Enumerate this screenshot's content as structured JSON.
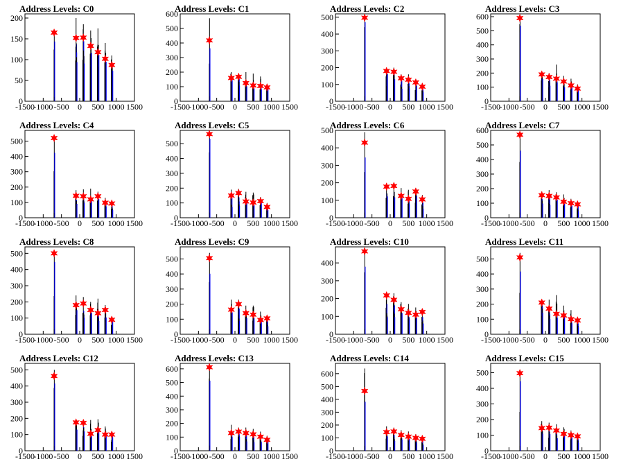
{
  "chart_data": {
    "type": "histogram-grid",
    "x_ticks": [
      -1500,
      -1000,
      -500,
      0,
      500,
      1000,
      1500
    ],
    "x_tick_labels": [
      "-1500",
      "-1000",
      "-500",
      "0",
      "500",
      "1000",
      "1500"
    ],
    "xlim": [
      -1500,
      1500
    ],
    "colors": {
      "histogram_black": "#000000",
      "histogram_blue": "#0000ff",
      "peak_marker": "#ff0000"
    },
    "panels": [
      {
        "title": "Address Levels: C0",
        "ylim": [
          0,
          210
        ],
        "y_ticks": [
          0,
          50,
          100,
          150,
          200
        ],
        "peaks": [
          [
            -700,
            165
          ],
          [
            -100,
            152
          ],
          [
            100,
            153
          ],
          [
            300,
            133
          ],
          [
            500,
            118
          ],
          [
            700,
            102
          ],
          [
            880,
            87
          ]
        ],
        "black_max": [
          [
            -700,
            170
          ],
          [
            -100,
            200
          ],
          [
            100,
            185
          ],
          [
            300,
            170
          ],
          [
            500,
            175
          ],
          [
            700,
            140
          ],
          [
            880,
            110
          ]
        ],
        "blue_ratio": 0.95
      },
      {
        "title": "Address Levels: C1",
        "ylim": [
          0,
          600
        ],
        "y_ticks": [
          0,
          100,
          200,
          300,
          400,
          500,
          600
        ],
        "peaks": [
          [
            -700,
            418
          ],
          [
            -100,
            160
          ],
          [
            100,
            168
          ],
          [
            300,
            125
          ],
          [
            500,
            108
          ],
          [
            700,
            105
          ],
          [
            880,
            95
          ]
        ],
        "black_max": [
          [
            -700,
            570
          ],
          [
            -100,
            200
          ],
          [
            100,
            190
          ],
          [
            300,
            200
          ],
          [
            500,
            190
          ],
          [
            700,
            170
          ],
          [
            880,
            120
          ]
        ],
        "blue_ratio": 0.95
      },
      {
        "title": "Address Levels: C2",
        "ylim": [
          0,
          520
        ],
        "y_ticks": [
          0,
          100,
          200,
          300,
          400,
          500
        ],
        "peaks": [
          [
            -700,
            497
          ],
          [
            -100,
            180
          ],
          [
            100,
            175
          ],
          [
            300,
            137
          ],
          [
            500,
            128
          ],
          [
            700,
            112
          ],
          [
            880,
            87
          ]
        ],
        "black_max": [
          [
            -700,
            510
          ],
          [
            -100,
            190
          ],
          [
            100,
            200
          ],
          [
            300,
            160
          ],
          [
            500,
            160
          ],
          [
            700,
            130
          ],
          [
            880,
            100
          ]
        ],
        "blue_ratio": 0.95
      },
      {
        "title": "Address Levels: C3",
        "ylim": [
          0,
          620
        ],
        "y_ticks": [
          0,
          100,
          200,
          300,
          400,
          500,
          600
        ],
        "peaks": [
          [
            -700,
            590
          ],
          [
            -100,
            190
          ],
          [
            100,
            172
          ],
          [
            300,
            160
          ],
          [
            500,
            140
          ],
          [
            700,
            112
          ],
          [
            880,
            90
          ]
        ],
        "black_max": [
          [
            -700,
            600
          ],
          [
            -100,
            200
          ],
          [
            100,
            200
          ],
          [
            300,
            260
          ],
          [
            500,
            180
          ],
          [
            700,
            160
          ],
          [
            880,
            120
          ]
        ],
        "blue_ratio": 0.95
      },
      {
        "title": "Address Levels: C4",
        "ylim": [
          0,
          570
        ],
        "y_ticks": [
          0,
          100,
          200,
          300,
          400,
          500
        ],
        "peaks": [
          [
            -700,
            520
          ],
          [
            -100,
            143
          ],
          [
            100,
            140
          ],
          [
            300,
            120
          ],
          [
            500,
            140
          ],
          [
            700,
            98
          ],
          [
            880,
            93
          ]
        ],
        "black_max": [
          [
            -700,
            530
          ],
          [
            -100,
            180
          ],
          [
            100,
            185
          ],
          [
            300,
            190
          ],
          [
            500,
            170
          ],
          [
            700,
            130
          ],
          [
            880,
            110
          ]
        ],
        "blue_ratio": 0.95
      },
      {
        "title": "Address Levels: C5",
        "ylim": [
          0,
          590
        ],
        "y_ticks": [
          0,
          100,
          200,
          300,
          400,
          500
        ],
        "peaks": [
          [
            -700,
            565
          ],
          [
            -100,
            150
          ],
          [
            100,
            167
          ],
          [
            300,
            110
          ],
          [
            500,
            103
          ],
          [
            700,
            112
          ],
          [
            880,
            73
          ]
        ],
        "black_max": [
          [
            -700,
            580
          ],
          [
            -100,
            190
          ],
          [
            100,
            195
          ],
          [
            300,
            175
          ],
          [
            500,
            170
          ],
          [
            700,
            140
          ],
          [
            880,
            100
          ]
        ],
        "blue_ratio": 0.95
      },
      {
        "title": "Address Levels: C6",
        "ylim": [
          0,
          500
        ],
        "y_ticks": [
          0,
          100,
          200,
          300,
          400,
          500
        ],
        "peaks": [
          [
            -700,
            430
          ],
          [
            -100,
            178
          ],
          [
            100,
            182
          ],
          [
            300,
            125
          ],
          [
            500,
            108
          ],
          [
            700,
            150
          ],
          [
            880,
            105
          ]
        ],
        "black_max": [
          [
            -700,
            490
          ],
          [
            -100,
            185
          ],
          [
            100,
            190
          ],
          [
            300,
            170
          ],
          [
            500,
            160
          ],
          [
            700,
            170
          ],
          [
            880,
            130
          ]
        ],
        "blue_ratio": 0.9
      },
      {
        "title": "Address Levels: C7",
        "ylim": [
          0,
          600
        ],
        "y_ticks": [
          0,
          100,
          200,
          300,
          400,
          500,
          600
        ],
        "peaks": [
          [
            -700,
            570
          ],
          [
            -100,
            155
          ],
          [
            100,
            150
          ],
          [
            300,
            140
          ],
          [
            500,
            110
          ],
          [
            700,
            100
          ],
          [
            880,
            92
          ]
        ],
        "black_max": [
          [
            -700,
            590
          ],
          [
            -100,
            180
          ],
          [
            100,
            190
          ],
          [
            300,
            175
          ],
          [
            500,
            160
          ],
          [
            700,
            130
          ],
          [
            880,
            110
          ]
        ],
        "blue_ratio": 0.95
      },
      {
        "title": "Address Levels: C8",
        "ylim": [
          0,
          540
        ],
        "y_ticks": [
          0,
          100,
          200,
          300,
          400,
          500
        ],
        "peaks": [
          [
            -700,
            500
          ],
          [
            -100,
            180
          ],
          [
            100,
            190
          ],
          [
            300,
            150
          ],
          [
            500,
            130
          ],
          [
            700,
            150
          ],
          [
            880,
            90
          ]
        ],
        "black_max": [
          [
            -700,
            510
          ],
          [
            -100,
            240
          ],
          [
            100,
            230
          ],
          [
            300,
            200
          ],
          [
            500,
            220
          ],
          [
            700,
            180
          ],
          [
            880,
            110
          ]
        ],
        "blue_ratio": 0.9
      },
      {
        "title": "Address Levels: C9",
        "ylim": [
          0,
          580
        ],
        "y_ticks": [
          0,
          100,
          200,
          300,
          400,
          500
        ],
        "peaks": [
          [
            -700,
            505
          ],
          [
            -100,
            163
          ],
          [
            100,
            200
          ],
          [
            300,
            140
          ],
          [
            500,
            130
          ],
          [
            700,
            95
          ],
          [
            880,
            105
          ]
        ],
        "black_max": [
          [
            -700,
            540
          ],
          [
            -100,
            230
          ],
          [
            100,
            230
          ],
          [
            300,
            190
          ],
          [
            500,
            190
          ],
          [
            700,
            150
          ],
          [
            880,
            120
          ]
        ],
        "blue_ratio": 0.9
      },
      {
        "title": "Address Levels: C10",
        "ylim": [
          0,
          490
        ],
        "y_ticks": [
          0,
          100,
          200,
          300,
          400
        ],
        "peaks": [
          [
            -700,
            465
          ],
          [
            -100,
            218
          ],
          [
            100,
            193
          ],
          [
            300,
            140
          ],
          [
            500,
            120
          ],
          [
            700,
            110
          ],
          [
            880,
            125
          ]
        ],
        "black_max": [
          [
            -700,
            480
          ],
          [
            -100,
            225
          ],
          [
            100,
            230
          ],
          [
            300,
            180
          ],
          [
            500,
            170
          ],
          [
            700,
            150
          ],
          [
            880,
            130
          ]
        ],
        "blue_ratio": 0.9
      },
      {
        "title": "Address Levels: C11",
        "ylim": [
          0,
          580
        ],
        "y_ticks": [
          0,
          100,
          200,
          300,
          400,
          500
        ],
        "peaks": [
          [
            -700,
            510
          ],
          [
            -100,
            210
          ],
          [
            100,
            170
          ],
          [
            300,
            135
          ],
          [
            500,
            125
          ],
          [
            700,
            100
          ],
          [
            880,
            92
          ]
        ],
        "black_max": [
          [
            -700,
            540
          ],
          [
            -100,
            220
          ],
          [
            100,
            230
          ],
          [
            300,
            260
          ],
          [
            500,
            190
          ],
          [
            700,
            160
          ],
          [
            880,
            110
          ]
        ],
        "blue_ratio": 0.95
      },
      {
        "title": "Address Levels: C12",
        "ylim": [
          0,
          540
        ],
        "y_ticks": [
          0,
          100,
          200,
          300,
          400,
          500
        ],
        "peaks": [
          [
            -700,
            462
          ],
          [
            -100,
            175
          ],
          [
            100,
            172
          ],
          [
            300,
            105
          ],
          [
            500,
            128
          ],
          [
            700,
            100
          ],
          [
            880,
            100
          ]
        ],
        "black_max": [
          [
            -700,
            500
          ],
          [
            -100,
            185
          ],
          [
            100,
            190
          ],
          [
            300,
            190
          ],
          [
            500,
            195
          ],
          [
            700,
            150
          ],
          [
            880,
            120
          ]
        ],
        "blue_ratio": 0.95
      },
      {
        "title": "Address Levels: C13",
        "ylim": [
          0,
          640
        ],
        "y_ticks": [
          0,
          100,
          200,
          300,
          400,
          500,
          600
        ],
        "peaks": [
          [
            -700,
            612
          ],
          [
            -100,
            130
          ],
          [
            100,
            140
          ],
          [
            300,
            130
          ],
          [
            500,
            120
          ],
          [
            700,
            103
          ],
          [
            880,
            80
          ]
        ],
        "black_max": [
          [
            -700,
            630
          ],
          [
            -100,
            190
          ],
          [
            100,
            170
          ],
          [
            300,
            170
          ],
          [
            500,
            160
          ],
          [
            700,
            140
          ],
          [
            880,
            110
          ]
        ],
        "blue_ratio": 0.95
      },
      {
        "title": "Address Levels: C14",
        "ylim": [
          0,
          680
        ],
        "y_ticks": [
          0,
          100,
          200,
          300,
          400,
          500,
          600
        ],
        "peaks": [
          [
            -700,
            465
          ],
          [
            -100,
            145
          ],
          [
            100,
            150
          ],
          [
            300,
            123
          ],
          [
            500,
            110
          ],
          [
            700,
            100
          ],
          [
            880,
            93
          ]
        ],
        "black_max": [
          [
            -700,
            640
          ],
          [
            -100,
            190
          ],
          [
            100,
            180
          ],
          [
            300,
            160
          ],
          [
            500,
            150
          ],
          [
            700,
            130
          ],
          [
            880,
            110
          ]
        ],
        "blue_ratio": 0.9
      },
      {
        "title": "Address Levels: C15",
        "ylim": [
          0,
          560
        ],
        "y_ticks": [
          0,
          100,
          200,
          300,
          400,
          500
        ],
        "peaks": [
          [
            -700,
            497
          ],
          [
            -100,
            145
          ],
          [
            100,
            148
          ],
          [
            300,
            130
          ],
          [
            500,
            108
          ],
          [
            700,
            100
          ],
          [
            880,
            92
          ]
        ],
        "black_max": [
          [
            -700,
            520
          ],
          [
            -100,
            190
          ],
          [
            100,
            180
          ],
          [
            300,
            170
          ],
          [
            500,
            150
          ],
          [
            700,
            130
          ],
          [
            880,
            110
          ]
        ],
        "blue_ratio": 0.95
      }
    ]
  }
}
